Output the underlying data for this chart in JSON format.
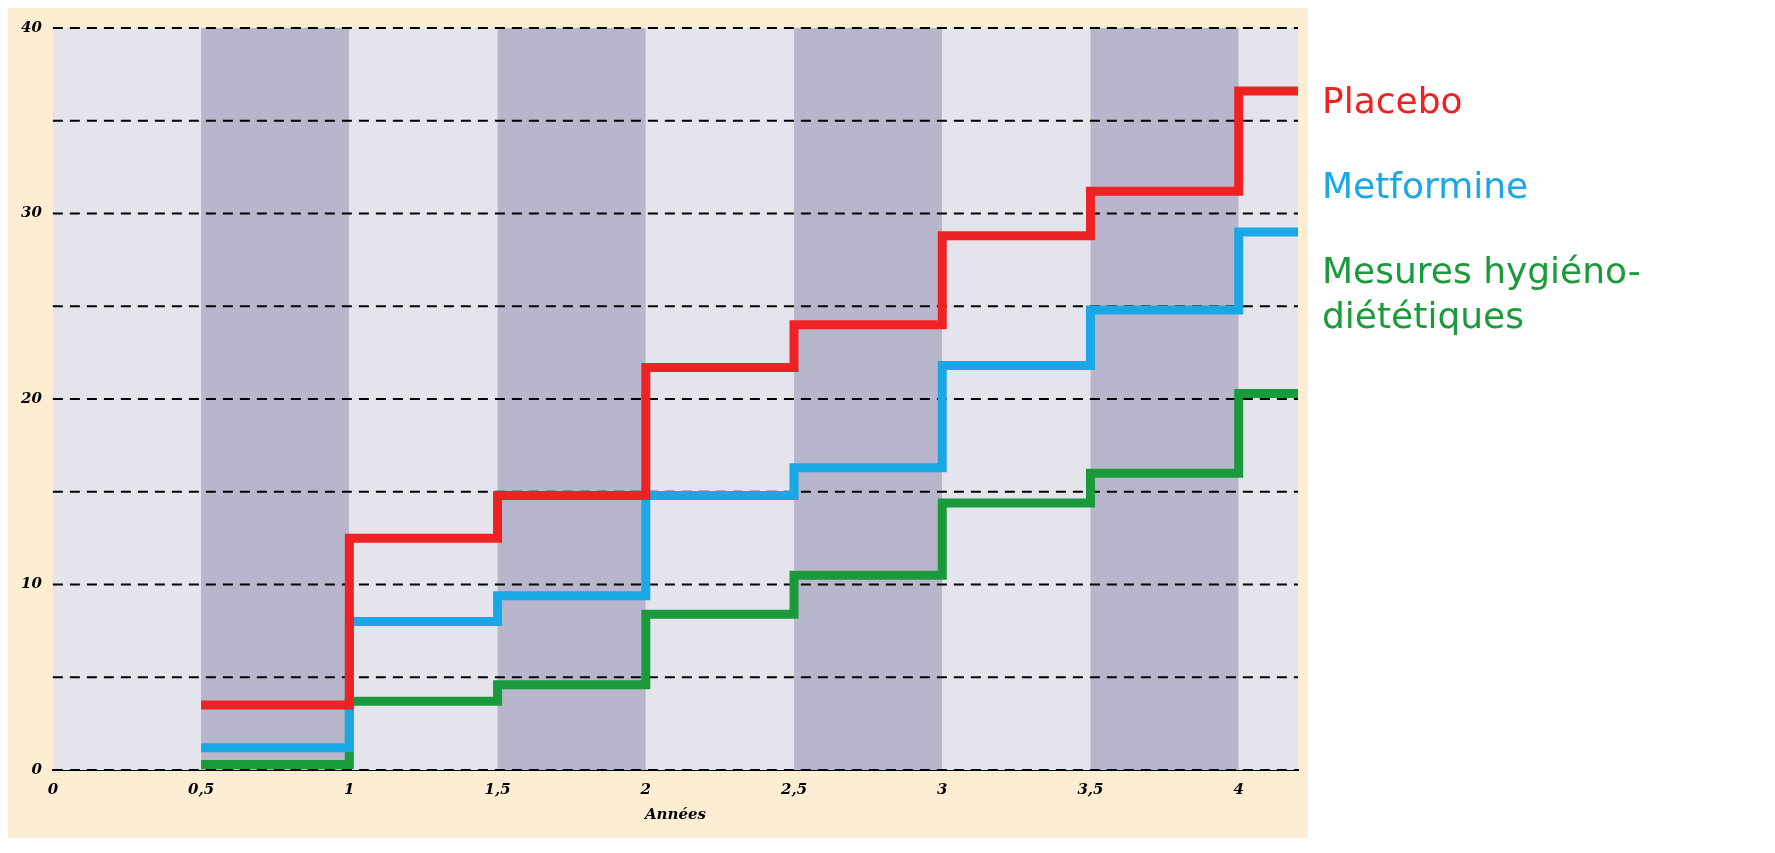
{
  "chart_data": {
    "type": "step",
    "xlabel": "Années",
    "x": [
      0.5,
      1,
      1.5,
      2,
      2.5,
      3,
      3.5,
      4,
      4.2
    ],
    "series": [
      {
        "name": "Placebo",
        "color": "#ee2222",
        "values": [
          3.5,
          12.5,
          14.8,
          21.7,
          24,
          28.8,
          31.2,
          36.6,
          36.6
        ]
      },
      {
        "name": "Metformine",
        "color": "#1aa7e6",
        "values": [
          1.2,
          8,
          9.4,
          14.8,
          16.3,
          21.8,
          24.8,
          29,
          29
        ]
      },
      {
        "name": "Mesures hygiéno-diététiques",
        "color": "#1a9a3a",
        "values": [
          0.3,
          3.7,
          4.6,
          8.4,
          10.5,
          14.4,
          16,
          20.3,
          20.3
        ]
      }
    ],
    "xlim": [
      0,
      4.2
    ],
    "xticks": [
      0,
      {
        "value": 0.5,
        "label": "0,5"
      },
      1,
      {
        "value": 1.5,
        "label": "1,5"
      },
      2,
      {
        "value": 2.5,
        "label": "2,5"
      },
      3,
      {
        "value": 3.5,
        "label": "3,5"
      },
      4
    ],
    "ylim": [
      0,
      40
    ],
    "yticks": [
      0,
      {
        "value": 5,
        "label": null
      },
      10,
      {
        "value": 15,
        "label": null
      },
      20,
      {
        "value": 25,
        "label": null
      },
      30,
      {
        "value": 35,
        "label": null
      },
      40
    ],
    "bands": [
      {
        "axis": "x",
        "from": 0,
        "to": 0.5,
        "color": "#e4e4ec"
      },
      {
        "axis": "x",
        "from": 0.5,
        "to": 1,
        "color": "#b8b6cc"
      },
      {
        "axis": "x",
        "from": 1,
        "to": 1.5,
        "color": "#e4e4ec"
      },
      {
        "axis": "x",
        "from": 1.5,
        "to": 2,
        "color": "#b8b6cc"
      },
      {
        "axis": "x",
        "from": 2,
        "to": 2.5,
        "color": "#e4e4ec"
      },
      {
        "axis": "x",
        "from": 2.5,
        "to": 3,
        "color": "#b8b6cc"
      },
      {
        "axis": "x",
        "from": 3,
        "to": 3.5,
        "color": "#e4e4ec"
      },
      {
        "axis": "x",
        "from": 3.5,
        "to": 4,
        "color": "#b8b6cc"
      },
      {
        "axis": "x",
        "from": 4,
        "to": 4.2,
        "color": "#e4e4ec"
      }
    ],
    "grid": "y",
    "line_style": "solid",
    "marker": "none",
    "legend": "right"
  }
}
